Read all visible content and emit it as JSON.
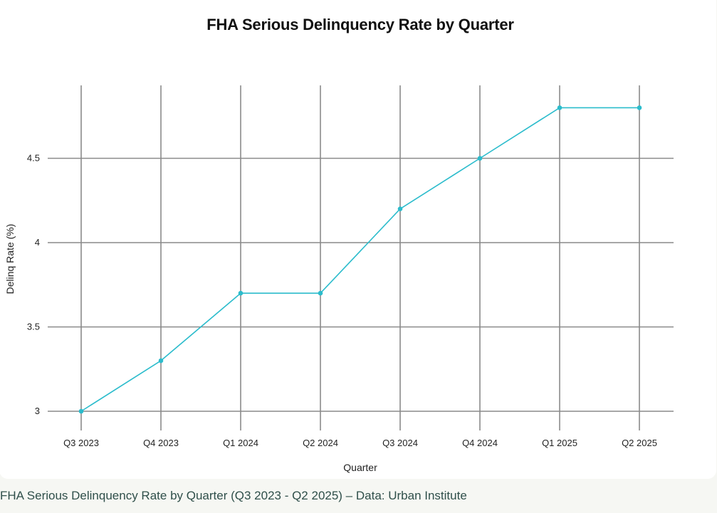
{
  "chart_data": {
    "type": "line",
    "title": "FHA Serious Delinquency Rate by Quarter",
    "xlabel": "Quarter",
    "ylabel": "Delinq Rate (%)",
    "categories": [
      "Q3 2023",
      "Q4 2023",
      "Q1 2024",
      "Q2 2024",
      "Q3 2024",
      "Q4 2024",
      "Q1 2025",
      "Q2 2025"
    ],
    "series": [
      {
        "name": "Serious Delinquency Rate",
        "values": [
          3.0,
          3.3,
          3.7,
          3.7,
          4.2,
          4.5,
          4.8,
          4.8
        ]
      }
    ],
    "yticks": [
      3,
      3.5,
      4,
      4.5
    ],
    "ytick_labels": [
      "3",
      "3.5",
      "4",
      "4.5"
    ],
    "ylim": [
      3,
      4.92
    ],
    "grid": true,
    "colors": {
      "line": "#2bbccc",
      "grid": "#8a8a8a",
      "text": "#222222"
    }
  },
  "caption": "FHA Serious Delinquency Rate by Quarter (Q3 2023 - Q2 2025) – Data: Urban Institute"
}
